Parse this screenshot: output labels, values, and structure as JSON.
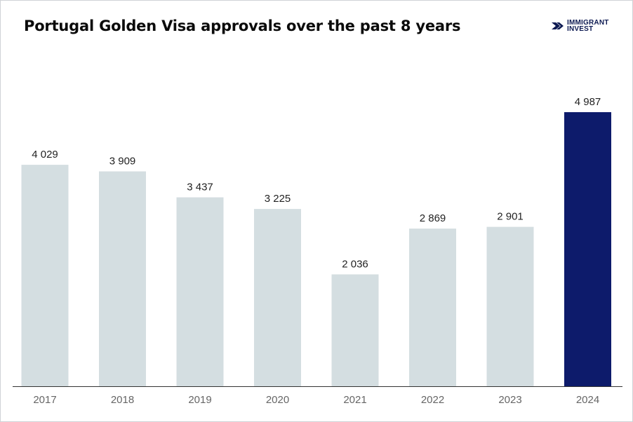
{
  "title": "Portugal Golden Visa approvals over the past 8 years",
  "logo": {
    "line1": "IMMIGRANT",
    "line2": "INVEST",
    "icon": "arrow-logo-icon",
    "color": "#0d1a52"
  },
  "chart_data": {
    "type": "bar",
    "title": "Portugal Golden Visa approvals over the past 8 years",
    "xlabel": "",
    "ylabel": "",
    "categories": [
      "2017",
      "2018",
      "2019",
      "2020",
      "2021",
      "2022",
      "2023",
      "2024"
    ],
    "values": [
      4029,
      3909,
      3437,
      3225,
      2036,
      2869,
      2901,
      4987
    ],
    "value_labels": [
      "4 029",
      "3 909",
      "3 437",
      "3 225",
      "2 036",
      "2 869",
      "2 901",
      "4 987"
    ],
    "ylim": [
      0,
      5000
    ],
    "grid": false,
    "legend": "none",
    "colors": {
      "default": "#d4dee1",
      "highlight": "#0d1b6b",
      "highlight_index": 7,
      "axis": "#333333"
    }
  }
}
